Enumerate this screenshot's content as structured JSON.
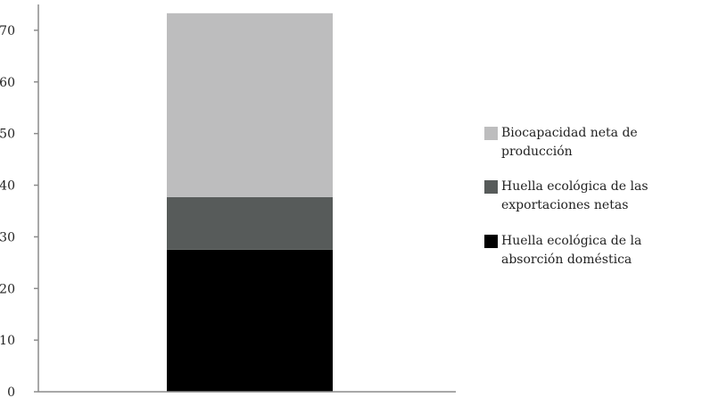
{
  "chart_data": {
    "type": "bar",
    "stacked": true,
    "categories": [
      ""
    ],
    "series": [
      {
        "name": "Huella ecológica de la absorción doméstica",
        "values": [
          27.5
        ],
        "color": "#000000"
      },
      {
        "name": "Huella ecológica de las exportaciones netas",
        "values": [
          10.2
        ],
        "color": "#575b5a"
      },
      {
        "name": "Biocapacidad neta de producción",
        "values": [
          35.6
        ],
        "color": "#bdbdbe"
      }
    ],
    "yticks": [
      "0",
      "10",
      "20",
      "30",
      "40",
      "50",
      "60",
      "70"
    ],
    "ylim": [
      0,
      75
    ],
    "grid": false,
    "legend_position": "right"
  },
  "legend": {
    "items": [
      {
        "label": "Biocapacidad neta de producción",
        "color": "#bdbdbe"
      },
      {
        "label": "Huella ecológica de las exportaciones netas",
        "color": "#575b5a"
      },
      {
        "label": "Huella ecológica de la absorción doméstica",
        "color": "#000000"
      }
    ]
  }
}
